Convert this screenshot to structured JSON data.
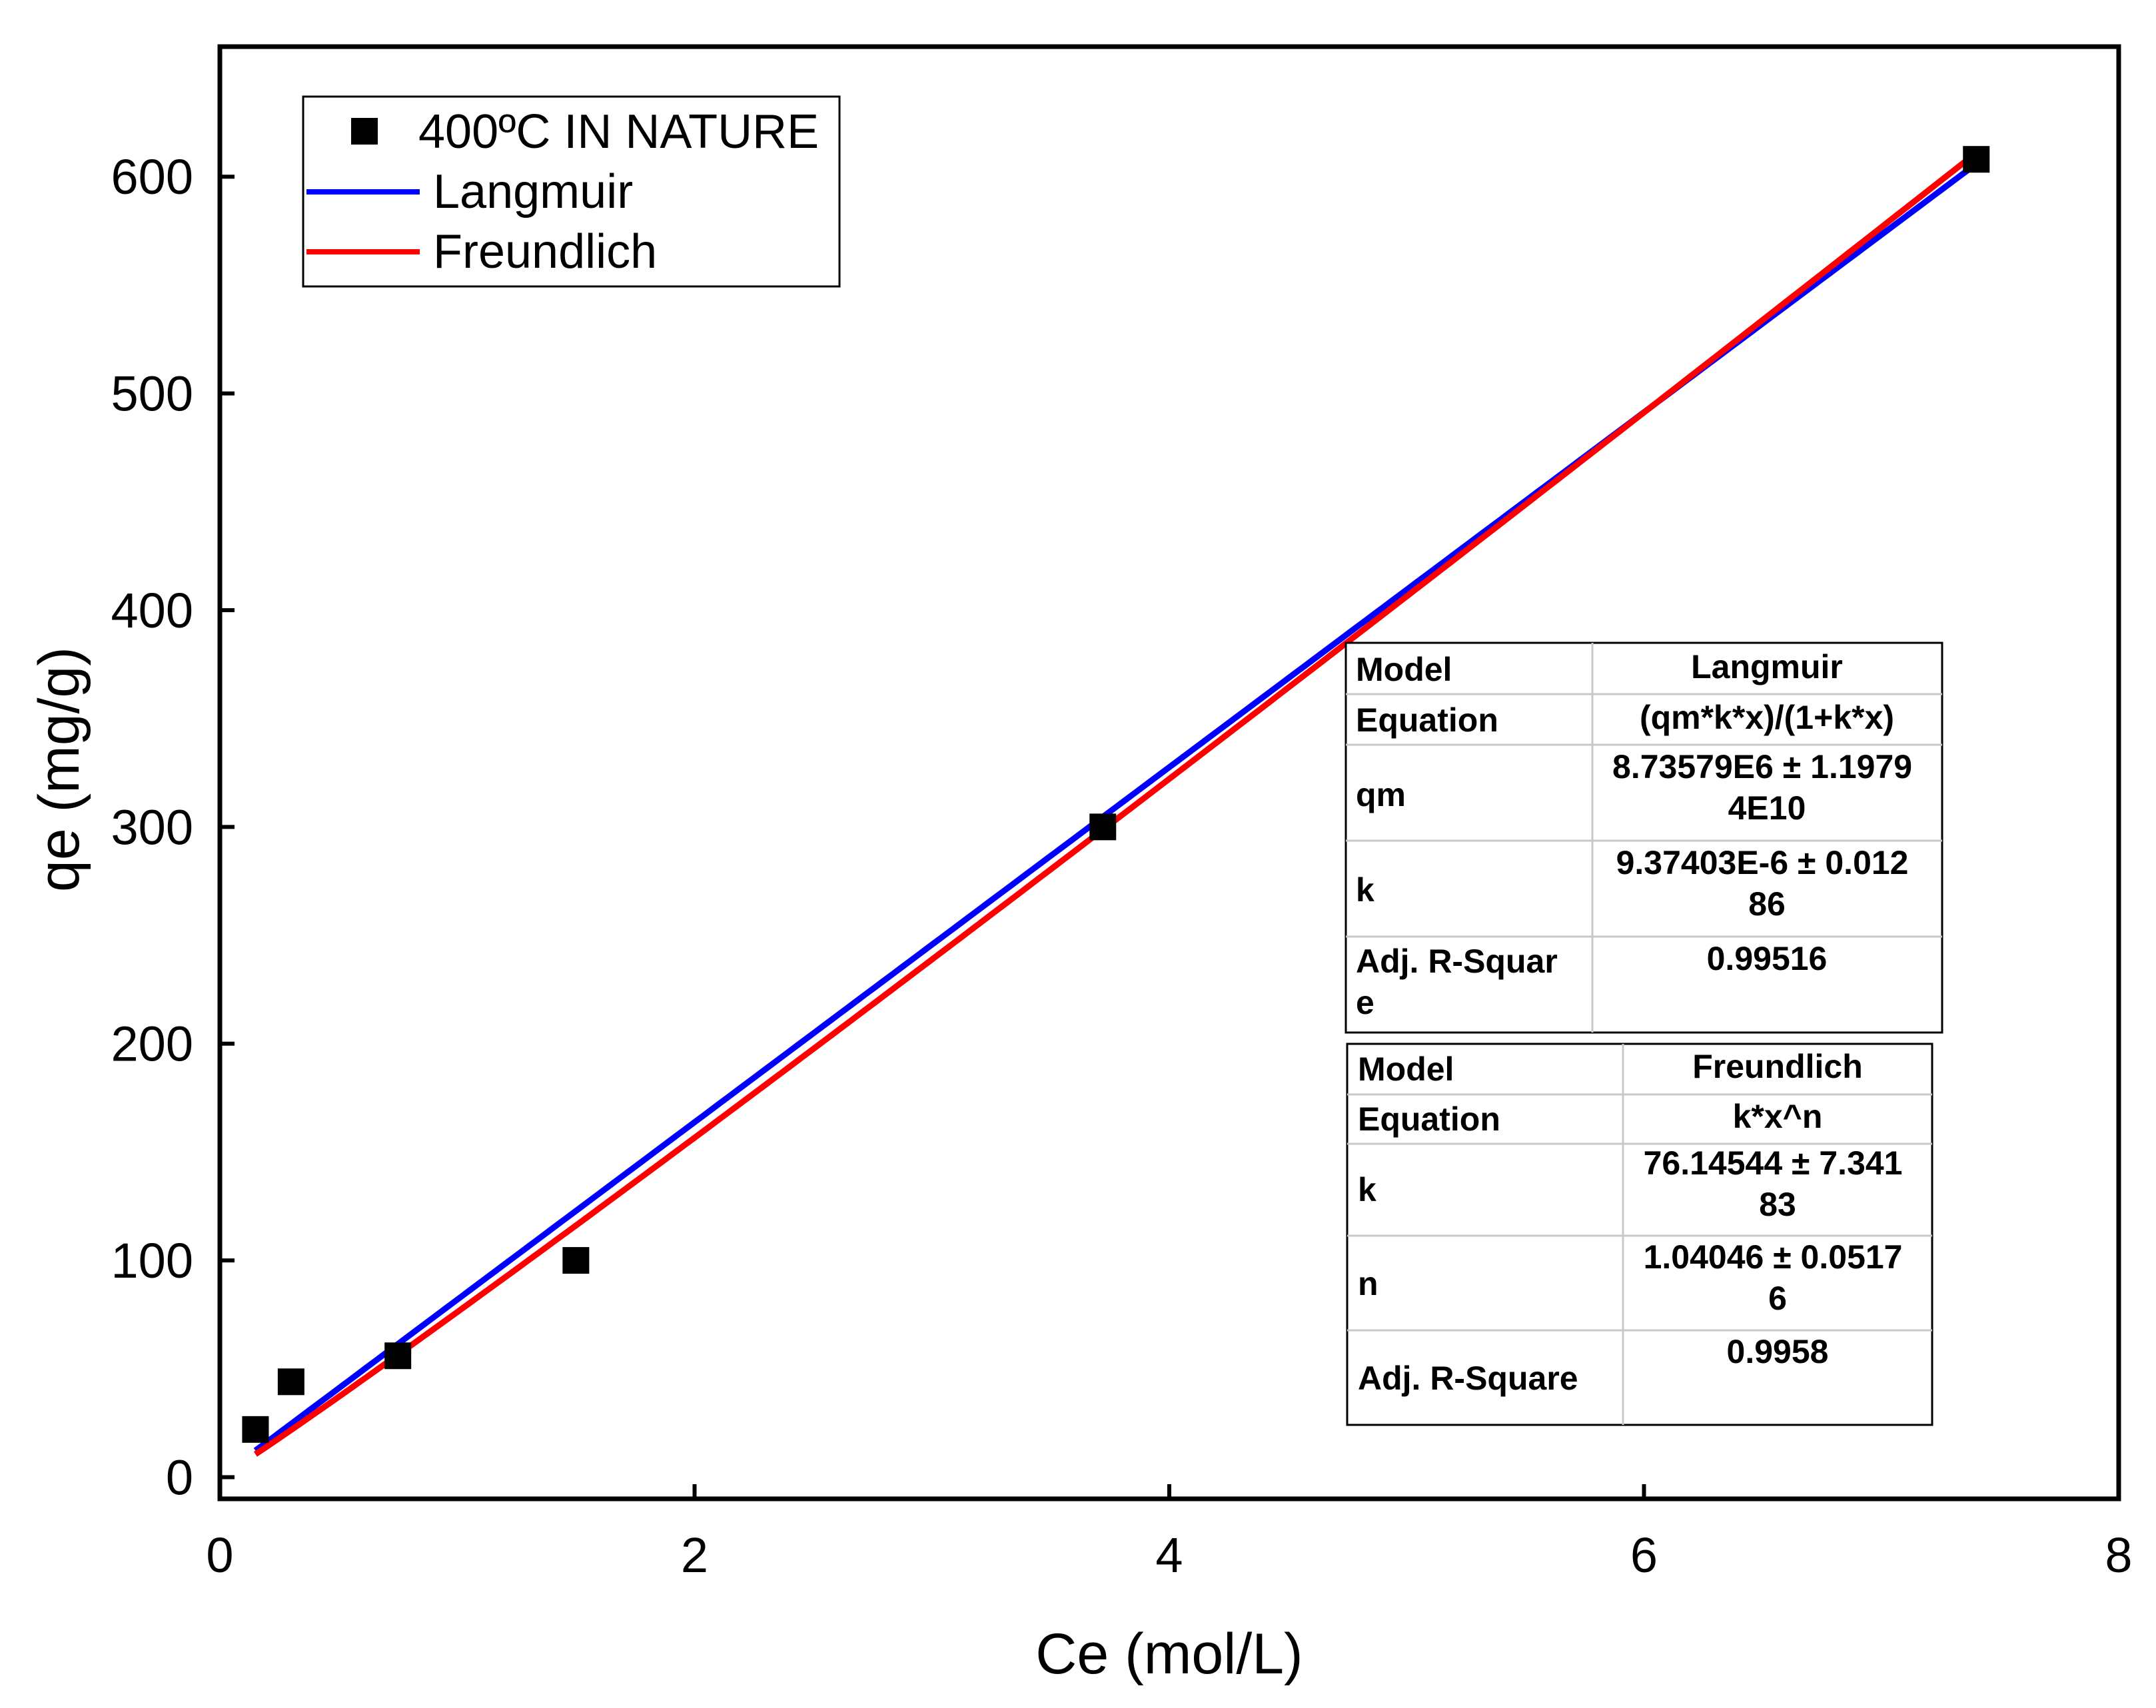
{
  "chart_data": {
    "type": "scatter",
    "xlabel": "Ce (mol/L)",
    "ylabel": "qe (mg/g)",
    "xlim": [
      0,
      8
    ],
    "ylim": [
      -10,
      660
    ],
    "xticks": [
      0,
      2,
      4,
      6,
      8
    ],
    "yticks": [
      0,
      100,
      200,
      300,
      400,
      500,
      600
    ],
    "xtick_labels": [
      "0",
      "2",
      "4",
      "6",
      "8"
    ],
    "ytick_labels": [
      "0",
      "100",
      "200",
      "300",
      "400",
      "500",
      "600"
    ],
    "grid": false,
    "legend_position": "top-left",
    "series": [
      {
        "name": "400ºC IN NATURE",
        "kind": "scatter",
        "color": "#000000",
        "x": [
          0.15,
          0.3,
          0.75,
          1.5,
          3.72,
          7.4
        ],
        "y": [
          22,
          44,
          56,
          100,
          300,
          608
        ]
      },
      {
        "name": "Langmuir",
        "kind": "line",
        "color": "#0000ff",
        "model": "langmuir",
        "params": {
          "qm": 8735790,
          "k": 9.37403e-06
        },
        "x_range": [
          0.15,
          7.4
        ]
      },
      {
        "name": "Freundlich",
        "kind": "line",
        "color": "#ff0000",
        "model": "freundlich",
        "params": {
          "k": 76.14544,
          "n": 1.04046
        },
        "x_range": [
          0.15,
          7.4
        ]
      }
    ],
    "tables": [
      {
        "rows": [
          [
            "Model",
            "Langmuir"
          ],
          [
            "Equation",
            "(qm*k*x)/(1+k*x)"
          ],
          [
            "qm",
            "8.73579E6 ± 1.1979 4E10"
          ],
          [
            "k",
            "9.37403E-6 ± 0.012 86"
          ],
          [
            "Adj. R-Square",
            "0.99516"
          ]
        ]
      },
      {
        "rows": [
          [
            "Model",
            "Freundlich"
          ],
          [
            "Equation",
            "k*x^n"
          ],
          [
            "k",
            "76.14544 ± 7.341 83"
          ],
          [
            "n",
            "1.04046 ± 0.0517 6"
          ],
          [
            "Adj. R-Square",
            "0.9958"
          ]
        ]
      }
    ]
  }
}
